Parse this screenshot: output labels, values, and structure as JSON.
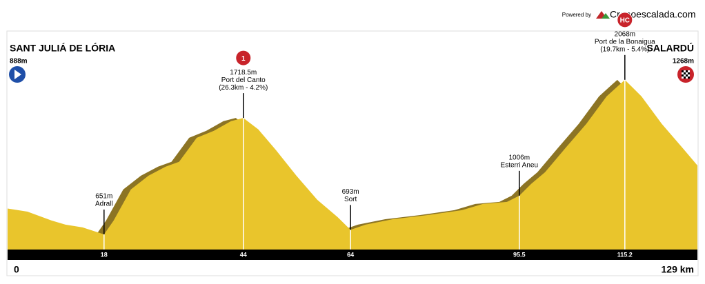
{
  "chart_data": {
    "type": "area",
    "brand_prefix": "Powered by",
    "brand": "Cronoescalada.com",
    "start": {
      "name": "SANT JULIÁ DE LÓRIA",
      "value": 888,
      "value_label": "888m"
    },
    "finish": {
      "name": "SALARDÚ",
      "value": 1268,
      "value_label": "1268m"
    },
    "x": [
      0,
      3.7,
      8.2,
      10.8,
      14,
      18,
      19.8,
      23,
      26.3,
      29.5,
      32,
      35.3,
      38.5,
      41.7,
      44,
      46.8,
      50.1,
      53.9,
      57.8,
      61.6,
      64,
      66.8,
      71.9,
      78.4,
      84.8,
      88.7,
      93.2,
      95.5,
      97.7,
      100.3,
      104.1,
      108,
      111.8,
      115.2,
      118.3,
      122.1,
      126,
      129
    ],
    "values": [
      888,
      860,
      778,
      740,
      715,
      651,
      778,
      1063,
      1189,
      1272,
      1316,
      1537,
      1601,
      1689,
      1718.5,
      1613,
      1423,
      1189,
      968,
      809,
      693,
      740,
      790,
      828,
      873,
      930,
      949,
      1006,
      1113,
      1221,
      1442,
      1664,
      1917,
      2068,
      1917,
      1664,
      1442,
      1268
    ],
    "color": "#e9c52c",
    "shadow_color": "#8c7424",
    "markers": {
      "x": [
        18,
        44,
        64,
        95.5,
        115.2
      ],
      "values": [
        651,
        1718.5,
        693,
        1006,
        2068
      ],
      "value_labels": [
        "651m",
        "1718.5m",
        "693m",
        "1006m",
        "2068m"
      ],
      "names": [
        "Adrall",
        "Port del Canto",
        "Sort",
        "Esterri Aneu",
        "Port de la Bonaigua"
      ],
      "details": [
        null,
        "(26.3km - 4.2%)",
        null,
        null,
        "(19.7km - 5.4%)"
      ],
      "category": [
        null,
        "1",
        null,
        null,
        "HC"
      ]
    },
    "xlim": [
      0,
      129
    ],
    "ylim": [
      512,
      2800
    ],
    "xticks": [
      0,
      18,
      44,
      64,
      95.5,
      115.2,
      {
        "value": 129,
        "label": "129 km"
      }
    ]
  }
}
